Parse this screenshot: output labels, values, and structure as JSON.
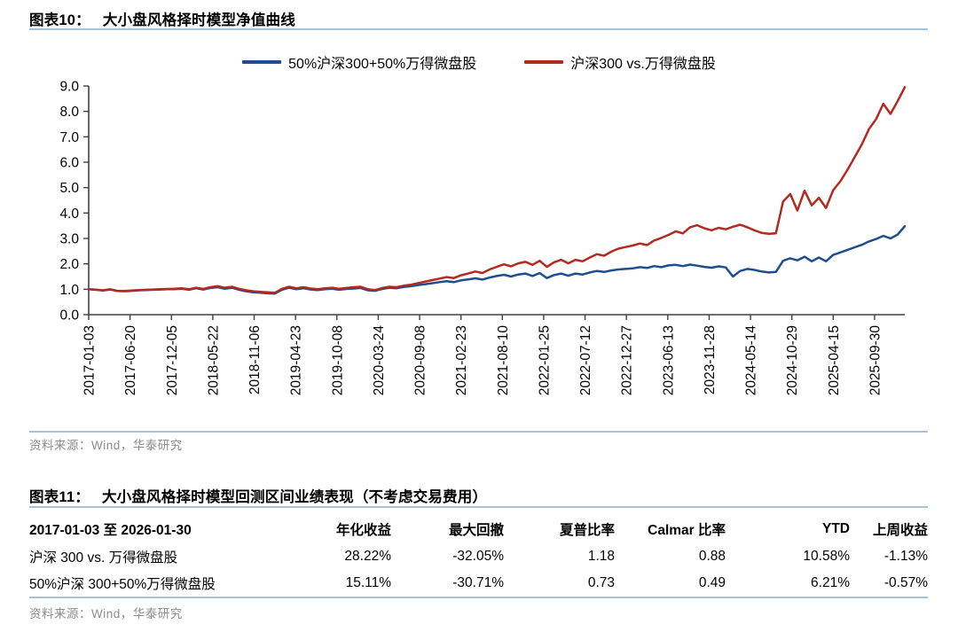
{
  "figure10": {
    "label": "图表10：",
    "title": "大小盘风格择时模型净值曲线",
    "source": "资料来源：Wind，华泰研究"
  },
  "figure11": {
    "label": "图表11：",
    "title": "大小盘风格择时模型回测区间业绩表现（不考虑交易费用）",
    "source": "资料来源：Wind，华泰研究",
    "table": {
      "header": [
        "2017-01-03 至 2026-01-30",
        "年化收益",
        "最大回撤",
        "夏普比率",
        "Calmar 比率",
        "YTD",
        "上周收益"
      ],
      "rows": [
        [
          "沪深 300 vs. 万得微盘股",
          "28.22%",
          "-32.05%",
          "1.18",
          "0.88",
          "10.58%",
          "-1.13%"
        ],
        [
          "50%沪深 300+50%万得微盘股",
          "15.11%",
          "-30.71%",
          "0.73",
          "0.49",
          "6.21%",
          "-0.57%"
        ]
      ]
    }
  },
  "chart_data": {
    "type": "line",
    "title": "大小盘风格择时模型净值曲线",
    "ylim": [
      0.0,
      9.0
    ],
    "y_tick_labels": [
      "0.0",
      "1.0",
      "2.0",
      "3.0",
      "4.0",
      "5.0",
      "6.0",
      "7.0",
      "8.0",
      "9.0"
    ],
    "x_tick_labels": [
      "2017-01-03",
      "2017-06-20",
      "2017-12-05",
      "2018-05-22",
      "2018-11-06",
      "2019-04-23",
      "2019-10-08",
      "2020-03-24",
      "2020-09-08",
      "2021-02-23",
      "2021-08-10",
      "2022-01-25",
      "2022-07-12",
      "2022-12-27",
      "2023-06-13",
      "2023-11-28",
      "2024-05-14",
      "2024-10-29",
      "2025-04-15",
      "2025-09-30"
    ],
    "x_tick_end_fraction": 0.963,
    "grid": false,
    "legend_position": "top-center",
    "series": [
      {
        "name": "50%沪深300+50%万得微盘股",
        "color": "#1f4e8f",
        "values": [
          1.0,
          0.98,
          0.95,
          0.99,
          0.93,
          0.92,
          0.94,
          0.96,
          0.97,
          0.98,
          0.99,
          1.0,
          1.0,
          1.02,
          0.98,
          1.04,
          0.99,
          1.05,
          1.08,
          1.02,
          1.06,
          0.98,
          0.92,
          0.88,
          0.86,
          0.84,
          0.83,
          0.98,
          1.06,
          1.0,
          1.04,
          0.99,
          0.97,
          1.0,
          1.02,
          0.98,
          1.01,
          1.03,
          1.05,
          0.96,
          0.94,
          1.01,
          1.06,
          1.04,
          1.09,
          1.12,
          1.16,
          1.2,
          1.24,
          1.28,
          1.32,
          1.28,
          1.35,
          1.39,
          1.43,
          1.38,
          1.46,
          1.52,
          1.57,
          1.5,
          1.58,
          1.62,
          1.52,
          1.64,
          1.44,
          1.56,
          1.62,
          1.53,
          1.62,
          1.58,
          1.66,
          1.72,
          1.68,
          1.74,
          1.78,
          1.8,
          1.82,
          1.87,
          1.84,
          1.91,
          1.87,
          1.94,
          1.96,
          1.91,
          1.97,
          1.93,
          1.88,
          1.85,
          1.9,
          1.86,
          1.5,
          1.72,
          1.8,
          1.76,
          1.7,
          1.66,
          1.68,
          2.12,
          2.22,
          2.14,
          2.28,
          2.1,
          2.25,
          2.1,
          2.35,
          2.45,
          2.55,
          2.65,
          2.75,
          2.88,
          2.98,
          3.1,
          3.0,
          3.15,
          3.48
        ]
      },
      {
        "name": "沪深300 vs.万得微盘股",
        "color": "#b22a20",
        "values": [
          1.0,
          0.98,
          0.96,
          1.0,
          0.94,
          0.93,
          0.95,
          0.97,
          0.98,
          0.99,
          1.0,
          1.01,
          1.02,
          1.04,
          1.0,
          1.06,
          1.01,
          1.08,
          1.12,
          1.06,
          1.1,
          1.02,
          0.96,
          0.92,
          0.9,
          0.88,
          0.86,
          1.02,
          1.1,
          1.04,
          1.08,
          1.03,
          1.0,
          1.04,
          1.06,
          1.02,
          1.05,
          1.08,
          1.1,
          1.0,
          0.97,
          1.05,
          1.1,
          1.08,
          1.14,
          1.18,
          1.24,
          1.3,
          1.36,
          1.42,
          1.48,
          1.44,
          1.55,
          1.62,
          1.7,
          1.64,
          1.78,
          1.88,
          1.98,
          1.9,
          2.02,
          2.08,
          1.96,
          2.12,
          1.88,
          2.06,
          2.16,
          2.02,
          2.16,
          2.1,
          2.25,
          2.38,
          2.32,
          2.48,
          2.6,
          2.66,
          2.72,
          2.8,
          2.74,
          2.92,
          3.02,
          3.14,
          3.28,
          3.2,
          3.44,
          3.52,
          3.4,
          3.32,
          3.42,
          3.36,
          3.46,
          3.54,
          3.44,
          3.32,
          3.22,
          3.18,
          3.2,
          4.45,
          4.75,
          4.1,
          4.88,
          4.3,
          4.6,
          4.2,
          4.9,
          5.25,
          5.7,
          6.2,
          6.7,
          7.3,
          7.7,
          8.3,
          7.9,
          8.4,
          8.95
        ]
      }
    ]
  },
  "colors": {
    "rule": "#a9c2dc",
    "axis": "#404040",
    "source_text": "#8c8c8c"
  }
}
